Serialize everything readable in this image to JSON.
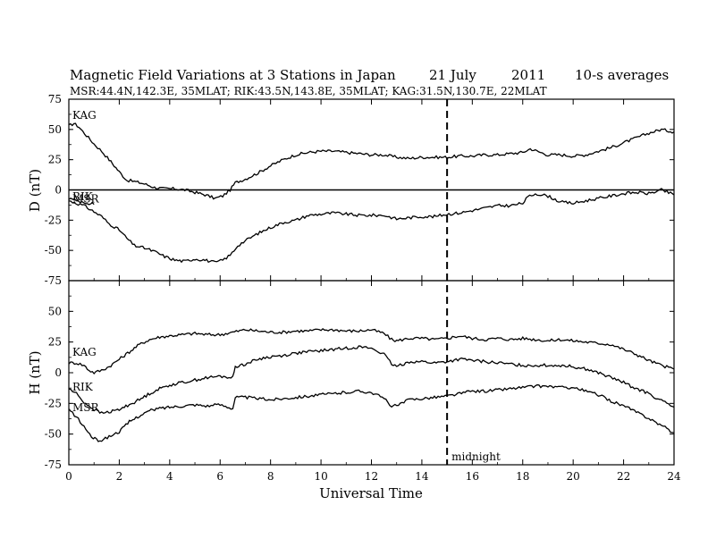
{
  "figure": {
    "title": "Magnetic Field Variations at 3 Stations in Japan",
    "date": "21 July",
    "year": "2011",
    "averaging": "10-s averages",
    "stations_line": "MSR:44.4N,142.3E, 35MLAT;  RIK:43.5N,143.8E, 35MLAT;  KAG:31.5N,130.7E, 22MLAT"
  },
  "chart_data": [
    {
      "type": "line",
      "panel": "top",
      "ylabel": "D (nT)",
      "ylim": [
        -75,
        75
      ],
      "yticks": [
        75,
        50,
        25,
        0,
        -25,
        -50,
        -75
      ],
      "xlim": [
        0,
        24
      ],
      "zero_line": true,
      "series": [
        {
          "name": "KAG",
          "x": [
            0,
            0.2,
            0.4,
            0.7,
            1.0,
            1.3,
            1.6,
            2.0,
            2.3,
            2.6,
            3.0,
            3.4,
            3.8,
            4.2,
            4.6,
            5.0,
            5.4,
            5.8,
            6.1,
            6.4,
            6.6,
            7.0,
            7.5,
            8.0,
            8.5,
            9.0,
            9.5,
            10.0,
            10.5,
            11.0,
            11.5,
            12.0,
            12.5,
            13.0,
            13.5,
            14.0,
            14.5,
            15.0,
            15.5,
            16.0,
            16.5,
            17.0,
            17.5,
            18.0,
            18.3,
            18.7,
            19.0,
            19.5,
            20.0,
            20.5,
            21.0,
            21.5,
            22.0,
            22.5,
            23.0,
            23.5,
            24.0
          ],
          "y": [
            53,
            55,
            52,
            45,
            38,
            32,
            25,
            15,
            8,
            7,
            5,
            2,
            1,
            1,
            0,
            -2,
            -4,
            -7,
            -5,
            0,
            6,
            9,
            14,
            20,
            25,
            29,
            31,
            32,
            32,
            31,
            30,
            29,
            29,
            27,
            26,
            27,
            27,
            27,
            28,
            28,
            29,
            29,
            30,
            31,
            34,
            31,
            29,
            29,
            28,
            29,
            32,
            35,
            39,
            43,
            47,
            50,
            48
          ]
        },
        {
          "name": "RIK",
          "x": [
            0,
            0.3,
            0.6,
            1.0
          ],
          "y": [
            -7,
            -9,
            -10,
            -12
          ]
        },
        {
          "name": "MSR",
          "x": [
            0,
            0.3,
            0.6,
            1.0,
            1.3,
            1.6,
            2.0,
            2.3,
            2.6,
            3.0,
            3.4,
            3.8,
            4.2,
            4.6,
            5.0,
            5.4,
            5.8,
            6.1,
            6.4,
            6.7,
            7.0,
            7.5,
            8.0,
            8.5,
            9.0,
            9.5,
            10.0,
            10.5,
            11.0,
            11.5,
            12.0,
            12.5,
            13.0,
            13.5,
            14.0,
            14.5,
            15.0,
            15.5,
            16.0,
            16.5,
            17.0,
            17.5,
            18.0,
            18.2,
            18.5,
            19.0,
            19.5,
            20.0,
            20.5,
            21.0,
            21.5,
            22.0,
            22.5,
            23.0,
            23.5,
            24.0
          ],
          "y": [
            -9,
            -11,
            -13,
            -18,
            -22,
            -28,
            -33,
            -40,
            -46,
            -48,
            -51,
            -55,
            -58,
            -59,
            -57,
            -58,
            -60,
            -58,
            -54,
            -46,
            -42,
            -36,
            -31,
            -27,
            -25,
            -21,
            -20,
            -19,
            -20,
            -21,
            -21,
            -21,
            -24,
            -23,
            -22,
            -22,
            -20,
            -19,
            -17,
            -15,
            -13,
            -13,
            -11,
            -6,
            -3,
            -5,
            -10,
            -11,
            -9,
            -7,
            -5,
            -3,
            -2,
            -3,
            0,
            -4
          ]
        }
      ]
    },
    {
      "type": "line",
      "panel": "bottom",
      "ylabel": "H (nT)",
      "xlabel": "Universal Time",
      "ylim": [
        -75,
        75
      ],
      "yticks": [
        50,
        25,
        0,
        -25,
        -50,
        -75
      ],
      "xlim": [
        0,
        24
      ],
      "xticks": [
        0,
        2,
        4,
        6,
        8,
        10,
        12,
        14,
        16,
        18,
        20,
        22,
        24
      ],
      "series": [
        {
          "name": "KAG",
          "x": [
            0,
            0.3,
            0.6,
            0.8,
            1.0,
            1.3,
            1.6,
            2.0,
            2.4,
            2.8,
            3.2,
            3.6,
            4.0,
            4.5,
            5.0,
            5.5,
            6.0,
            6.5,
            7.0,
            7.5,
            8.0,
            8.5,
            9.0,
            9.5,
            10.0,
            10.5,
            11.0,
            11.5,
            12.0,
            12.5,
            12.8,
            13.0,
            13.5,
            14.0,
            14.5,
            15.0,
            15.5,
            16.0,
            16.5,
            17.0,
            17.5,
            18.0,
            18.5,
            19.0,
            19.5,
            20.0,
            20.5,
            21.0,
            21.5,
            22.0,
            22.5,
            23.0,
            23.5,
            24.0
          ],
          "y": [
            8,
            8,
            6,
            2,
            0,
            2,
            5,
            11,
            17,
            23,
            27,
            29,
            30,
            31,
            32,
            31,
            31,
            33,
            35,
            34,
            33,
            33,
            34,
            34,
            35,
            35,
            34,
            34,
            35,
            32,
            27,
            26,
            28,
            28,
            27,
            28,
            30,
            28,
            27,
            28,
            27,
            28,
            27,
            26,
            27,
            26,
            25,
            24,
            23,
            19,
            15,
            10,
            6,
            3
          ]
        },
        {
          "name": "RIK",
          "x": [
            0,
            0.3,
            0.6,
            1.0,
            1.3,
            1.6,
            2.0,
            2.4,
            2.8,
            3.2,
            3.6,
            4.0,
            4.5,
            5.0,
            5.5,
            6.0,
            6.5,
            6.6,
            7.0,
            7.5,
            8.0,
            8.5,
            9.0,
            9.5,
            10.0,
            10.5,
            11.0,
            11.5,
            12.0,
            12.5,
            12.8,
            13.0,
            13.5,
            14.0,
            14.5,
            15.0,
            15.5,
            16.0,
            16.5,
            17.0,
            17.5,
            18.0,
            18.5,
            19.0,
            19.5,
            20.0,
            20.5,
            21.0,
            21.5,
            22.0,
            22.5,
            23.0,
            23.5,
            24.0
          ],
          "y": [
            -13,
            -17,
            -24,
            -30,
            -33,
            -32,
            -30,
            -26,
            -22,
            -17,
            -13,
            -10,
            -8,
            -6,
            -4,
            -3,
            -4,
            5,
            7,
            11,
            13,
            14,
            16,
            17,
            18,
            19,
            20,
            21,
            20,
            15,
            7,
            5,
            9,
            9,
            8,
            9,
            11,
            10,
            9,
            8,
            7,
            6,
            6,
            6,
            6,
            5,
            3,
            0,
            -4,
            -8,
            -13,
            -17,
            -23,
            -28
          ]
        },
        {
          "name": "MSR",
          "x": [
            0,
            0.3,
            0.6,
            0.9,
            1.1,
            1.3,
            1.6,
            2.0,
            2.4,
            2.8,
            3.2,
            3.6,
            4.0,
            4.5,
            5.0,
            5.5,
            6.0,
            6.5,
            6.6,
            7.0,
            7.5,
            8.0,
            8.5,
            9.0,
            9.5,
            10.0,
            10.5,
            11.0,
            11.5,
            12.0,
            12.5,
            12.8,
            13.0,
            13.5,
            14.0,
            14.5,
            15.0,
            15.5,
            16.0,
            16.5,
            17.0,
            17.5,
            18.0,
            18.5,
            19.0,
            19.5,
            20.0,
            20.5,
            21.0,
            21.5,
            22.0,
            22.5,
            23.0,
            23.5,
            24.0
          ],
          "y": [
            -30,
            -36,
            -44,
            -52,
            -55,
            -55,
            -52,
            -48,
            -40,
            -35,
            -31,
            -29,
            -28,
            -27,
            -26,
            -27,
            -26,
            -29,
            -20,
            -20,
            -21,
            -22,
            -21,
            -20,
            -19,
            -18,
            -17,
            -16,
            -15,
            -16,
            -21,
            -27,
            -27,
            -22,
            -21,
            -20,
            -19,
            -17,
            -15,
            -15,
            -14,
            -13,
            -12,
            -11,
            -11,
            -12,
            -12,
            -15,
            -18,
            -23,
            -27,
            -32,
            -37,
            -43,
            -49
          ]
        }
      ]
    }
  ],
  "annotations": {
    "midnight_label": "midnight",
    "midnight_x": 15
  },
  "colors": {
    "line": "#000000",
    "background": "#ffffff"
  }
}
